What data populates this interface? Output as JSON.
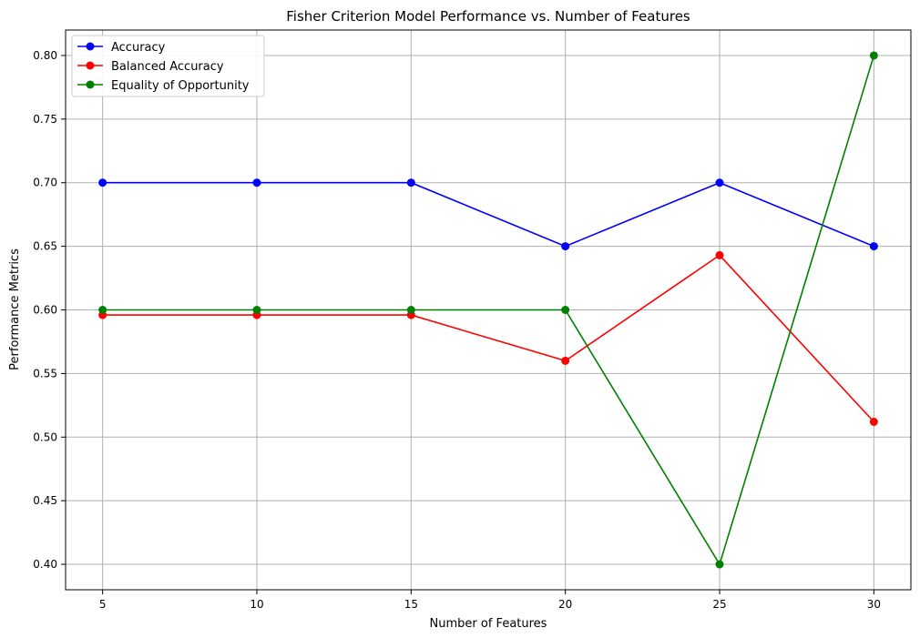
{
  "chart_data": {
    "type": "line",
    "title": "Fisher Criterion Model Performance vs. Number of Features",
    "xlabel": "Number of Features",
    "ylabel": "Performance Metrics",
    "x": [
      5,
      10,
      15,
      20,
      25,
      30
    ],
    "x_tick_labels": [
      "5",
      "10",
      "15",
      "20",
      "25",
      "30"
    ],
    "y_ticks": [
      0.4,
      0.45,
      0.5,
      0.55,
      0.6,
      0.65,
      0.7,
      0.75,
      0.8
    ],
    "y_tick_labels": [
      "0.40",
      "0.45",
      "0.50",
      "0.55",
      "0.60",
      "0.65",
      "0.70",
      "0.75",
      "0.80"
    ],
    "xlim": [
      3.8,
      31.2
    ],
    "ylim": [
      0.38,
      0.82
    ],
    "grid": true,
    "legend_position": "top-left",
    "series": [
      {
        "name": "Accuracy",
        "color": "#0000ff",
        "marker": "circle",
        "values": [
          0.7,
          0.7,
          0.7,
          0.65,
          0.7,
          0.65
        ]
      },
      {
        "name": "Balanced Accuracy",
        "color": "#ff0000",
        "marker": "circle",
        "values": [
          0.596,
          0.596,
          0.596,
          0.56,
          0.643,
          0.512
        ]
      },
      {
        "name": "Equality of Opportunity",
        "color": "#008000",
        "marker": "circle",
        "values": [
          0.6,
          0.6,
          0.6,
          0.6,
          0.4,
          0.8
        ]
      }
    ]
  }
}
